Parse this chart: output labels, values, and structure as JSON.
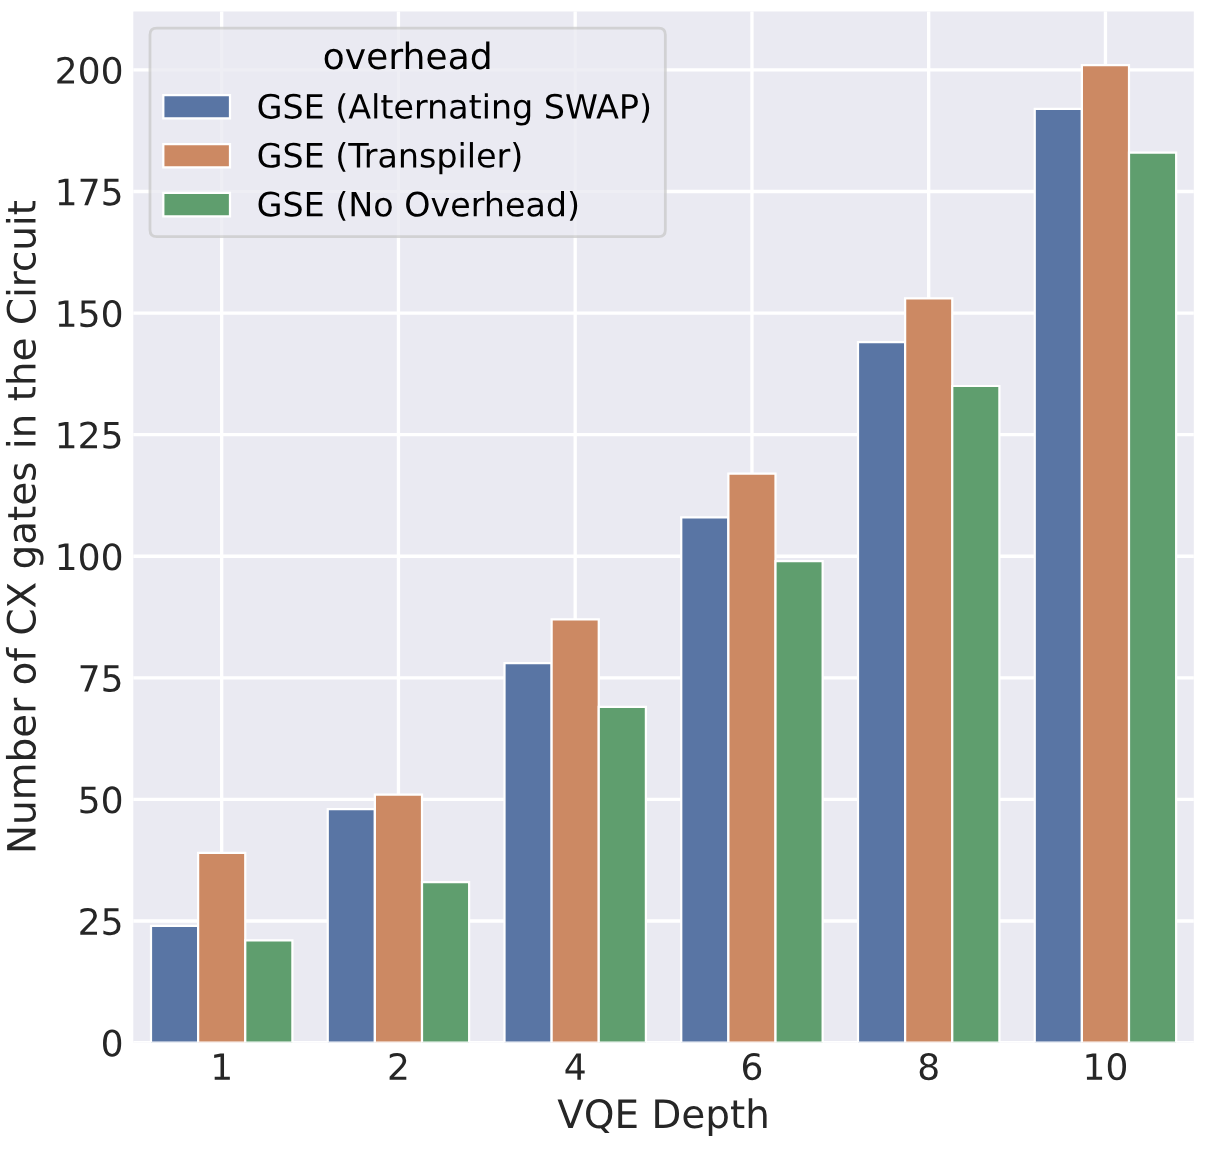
{
  "chart_data": {
    "type": "bar",
    "xlabel": "VQE Depth",
    "ylabel": "Number of CX gates in the Circuit",
    "legend_title": "overhead",
    "categories": [
      "1",
      "2",
      "4",
      "6",
      "8",
      "10"
    ],
    "series": [
      {
        "name": "GSE (Alternating SWAP)",
        "color": "#5975a4",
        "values": [
          24,
          48,
          78,
          108,
          144,
          192
        ]
      },
      {
        "name": "GSE (Transpiler)",
        "color": "#cc8963",
        "values": [
          39,
          51,
          87,
          117,
          153,
          201
        ]
      },
      {
        "name": "GSE (No Overhead)",
        "color": "#5f9e6e",
        "values": [
          21,
          33,
          69,
          99,
          135,
          183
        ]
      }
    ],
    "ylim": [
      0,
      212
    ],
    "yticks": [
      0,
      25,
      50,
      75,
      100,
      125,
      150,
      175,
      200
    ],
    "grid": true,
    "legend": "top left"
  }
}
